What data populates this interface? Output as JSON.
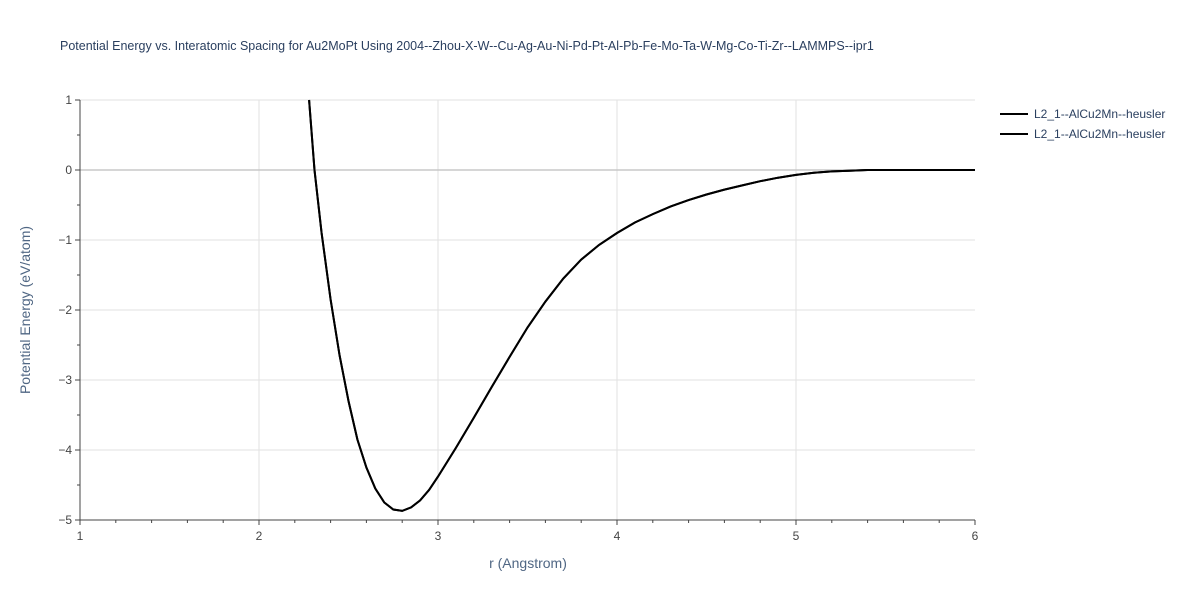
{
  "chart_data": {
    "type": "line",
    "title": "Potential Energy vs. Interatomic Spacing for Au2MoPt Using 2004--Zhou-X-W--Cu-Ag-Au-Ni-Pd-Pt-Al-Pb-Fe-Mo-Ta-W-Mg-Co-Ti-Zr--LAMMPS--ipr1",
    "xlabel": "r (Angstrom)",
    "ylabel": "Potential Energy (eV/atom)",
    "xlim": [
      1,
      6
    ],
    "ylim": [
      -5,
      1
    ],
    "xticks": [
      "1",
      "2",
      "3",
      "4",
      "5",
      "6"
    ],
    "yticks": [
      "1",
      "0",
      "−1",
      "−2",
      "−3",
      "−4",
      "−5"
    ],
    "grid": true,
    "legend_position": "top-right",
    "series": [
      {
        "name": "L2_1--AlCu2Mn--heusler",
        "color": "#000000",
        "x": [
          2.28,
          2.31,
          2.35,
          2.4,
          2.45,
          2.5,
          2.55,
          2.6,
          2.65,
          2.7,
          2.75,
          2.8,
          2.85,
          2.9,
          2.95,
          3.0,
          3.1,
          3.2,
          3.3,
          3.4,
          3.5,
          3.6,
          3.7,
          3.8,
          3.9,
          4.0,
          4.1,
          4.2,
          4.3,
          4.4,
          4.5,
          4.6,
          4.7,
          4.8,
          4.9,
          5.0,
          5.1,
          5.2,
          5.3,
          5.4,
          5.5,
          5.6,
          5.8,
          6.0
        ],
        "y": [
          1.0,
          0.0,
          -0.9,
          -1.85,
          -2.65,
          -3.3,
          -3.85,
          -4.25,
          -4.55,
          -4.75,
          -4.85,
          -4.87,
          -4.82,
          -4.72,
          -4.57,
          -4.38,
          -3.97,
          -3.54,
          -3.1,
          -2.67,
          -2.25,
          -1.88,
          -1.55,
          -1.28,
          -1.07,
          -0.9,
          -0.75,
          -0.63,
          -0.52,
          -0.43,
          -0.35,
          -0.28,
          -0.22,
          -0.16,
          -0.11,
          -0.07,
          -0.04,
          -0.02,
          -0.01,
          0.0,
          0.0,
          0.0,
          0.0,
          0.0
        ]
      },
      {
        "name": "L2_1--AlCu2Mn--heusler",
        "color": "#000000",
        "x": [
          2.28,
          2.31,
          2.35,
          2.4,
          2.45,
          2.5,
          2.55,
          2.6,
          2.65,
          2.7,
          2.75,
          2.8,
          2.85,
          2.9,
          2.95,
          3.0,
          3.1,
          3.2,
          3.3,
          3.4,
          3.5,
          3.6,
          3.7,
          3.8,
          3.9,
          4.0,
          4.1,
          4.2,
          4.3,
          4.4,
          4.5,
          4.6,
          4.7,
          4.8,
          4.9,
          5.0,
          5.1,
          5.2,
          5.3,
          5.4,
          5.5,
          5.6,
          5.8,
          6.0
        ],
        "y": [
          1.0,
          0.0,
          -0.9,
          -1.85,
          -2.65,
          -3.3,
          -3.85,
          -4.25,
          -4.55,
          -4.75,
          -4.85,
          -4.87,
          -4.82,
          -4.72,
          -4.57,
          -4.38,
          -3.97,
          -3.54,
          -3.1,
          -2.67,
          -2.25,
          -1.88,
          -1.55,
          -1.28,
          -1.07,
          -0.9,
          -0.75,
          -0.63,
          -0.52,
          -0.43,
          -0.35,
          -0.28,
          -0.22,
          -0.16,
          -0.11,
          -0.07,
          -0.04,
          -0.02,
          -0.01,
          0.0,
          0.0,
          0.0,
          0.0,
          0.0
        ]
      }
    ]
  }
}
